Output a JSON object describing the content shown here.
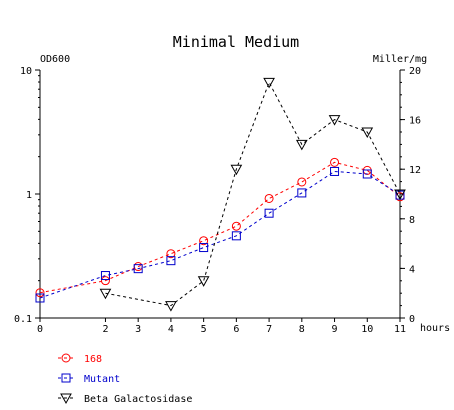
{
  "chart_data": {
    "type": "line",
    "title": "Minimal Medium",
    "xlabel": "hours",
    "ylabel_left": "OD600",
    "ylabel_right": "Miller/mg",
    "x_ticks": [
      0,
      2,
      3,
      4,
      5,
      6,
      7,
      8,
      9,
      10,
      11
    ],
    "xlim": [
      0,
      11
    ],
    "y_left": {
      "scale": "log",
      "lim": [
        0.1,
        10
      ],
      "ticks": [
        0.1,
        1,
        10
      ],
      "tick_labels": [
        "0.1",
        "1",
        "10"
      ]
    },
    "y_right": {
      "scale": "linear",
      "lim": [
        0,
        20
      ],
      "ticks": [
        0,
        4,
        8,
        12,
        16,
        20
      ],
      "tick_labels": [
        "0",
        "4",
        "8",
        "12",
        "16",
        "20"
      ]
    },
    "grid": false,
    "legend_position": "bottom-left",
    "series": [
      {
        "name": "168",
        "axis": "left",
        "marker": "circle",
        "color": "#ff0000",
        "x": [
          0,
          2,
          3,
          4,
          5,
          6,
          7,
          8,
          9,
          10,
          11
        ],
        "y": [
          0.16,
          0.2,
          0.26,
          0.33,
          0.42,
          0.55,
          0.92,
          1.25,
          1.8,
          1.55,
          0.95
        ]
      },
      {
        "name": "Mutant",
        "axis": "left",
        "marker": "square",
        "color": "#0000cc",
        "x": [
          0,
          2,
          3,
          4,
          5,
          6,
          7,
          8,
          9,
          10,
          11
        ],
        "y": [
          0.145,
          0.22,
          0.25,
          0.29,
          0.37,
          0.46,
          0.7,
          1.02,
          1.52,
          1.45,
          0.98
        ]
      },
      {
        "name": "Beta Galactosidase",
        "axis": "right",
        "marker": "triangle-down",
        "color": "#000000",
        "x": [
          2,
          4,
          5,
          6,
          7,
          8,
          9,
          10,
          11
        ],
        "y": [
          2,
          1,
          3,
          12,
          19,
          14,
          16,
          15,
          10
        ]
      }
    ]
  }
}
